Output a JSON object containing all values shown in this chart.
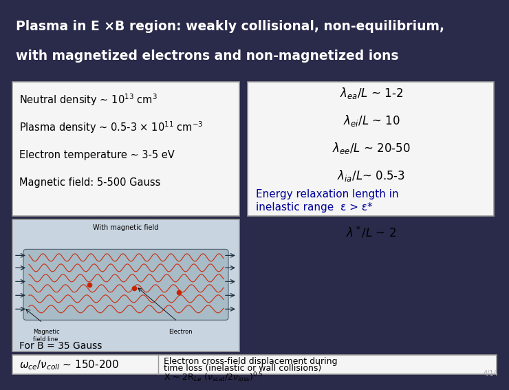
{
  "title_line1": "Plasma in E ×B region: weakly collisional, non-equilibrium,",
  "title_line2": "with magnetized electrons and non-magnetized ions",
  "title_bg": "#00008B",
  "title_color": "#FFFFFF",
  "left_box_items": [
    "Neutral density ~ 10$^{13}$ cm$^3$",
    "Plasma density ~ 0.5-3 × 10$^{11}$ cm$^{-3}$",
    "Electron temperature ~ 3-5 eV",
    "Magnetic field: 5-500 Gauss"
  ],
  "right_box_lambda": [
    "$\\lambda_{ea}/L$ ~ 1-2",
    "$\\lambda_{ei}/L$ ~ 10",
    "$\\lambda_{ee}/L$ ~ 20-50",
    "$\\lambda_{ia}/L$~ 0.5-3"
  ],
  "energy_text_line1": "Energy relaxation length in",
  "energy_text_line2": "inelastic range  ε > ε*",
  "lambda_star": "$\\lambda^*/L$ ~ 2",
  "bottom_left_line1": "For B = 35 Gauss",
  "bottom_left_line2": "$\\omega_{ce}/\\nu_{coll}$ ~ 150-200",
  "bottom_right_line1": "Electron cross-field displacement during",
  "bottom_right_line2": "time loss (inelastic or wall collisions)",
  "bottom_right_line3": "X ~ 2R$_{Le}$ ($\\nu_{scat}$/2$\\nu_{loss}$)$^{0.5}$",
  "slide_number": "4/14",
  "img_label_top": "With magnetic field",
  "img_label_field": "Magnetic\nfield line",
  "img_label_electron": "Electron",
  "main_bg": "#2a2a4a",
  "box_face": "#f5f5f5",
  "box_edge": "#999999"
}
